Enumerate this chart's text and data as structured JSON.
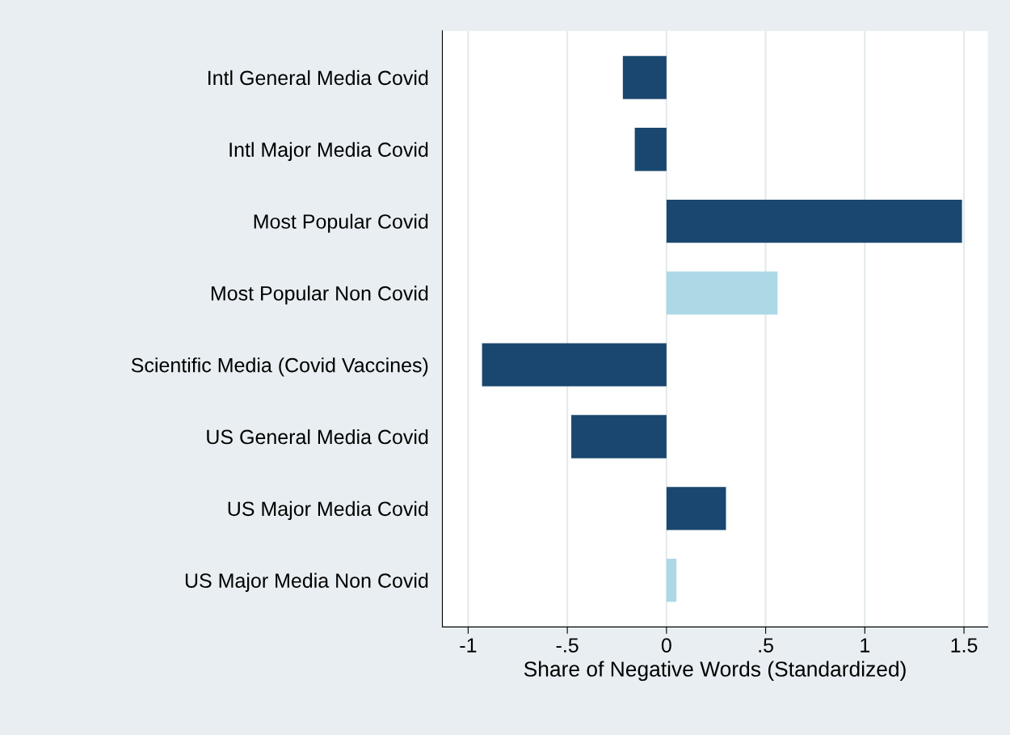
{
  "chart_data": {
    "type": "bar",
    "orientation": "horizontal",
    "xlabel": "Share of Negative Words (Standardized)",
    "categories": [
      "Intl General Media Covid",
      "Intl Major Media Covid",
      "Most Popular Covid",
      "Most Popular Non Covid",
      "Scientific Media (Covid Vaccines)",
      "US General Media Covid",
      "US Major Media Covid",
      "US Major Media Non Covid"
    ],
    "values": [
      -0.22,
      -0.16,
      1.49,
      0.56,
      -0.93,
      -0.48,
      0.3,
      0.05
    ],
    "colors": [
      "#1a476f",
      "#1a476f",
      "#1a476f",
      "#add8e6",
      "#1a476f",
      "#1a476f",
      "#1a476f",
      "#add8e6"
    ],
    "xlim": [
      -1.13,
      1.62
    ],
    "xticks": [
      -1,
      {
        "value": -0.5,
        "label": "-.5"
      },
      0,
      {
        "value": 0.5,
        "label": ".5"
      },
      1,
      1.5
    ],
    "grid": "x"
  }
}
